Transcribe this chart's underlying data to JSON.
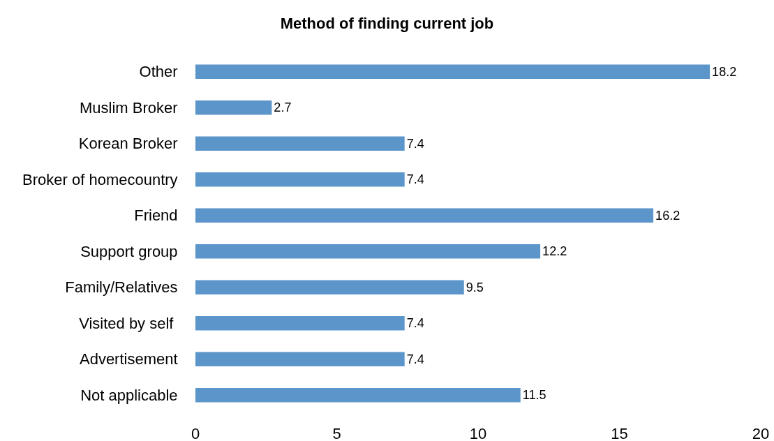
{
  "chart_data": {
    "type": "bar",
    "orientation": "horizontal",
    "title": "Method of finding current job",
    "categories": [
      "Other",
      "Muslim Broker",
      "Korean Broker",
      "Broker of homecountry",
      "Friend",
      "Support group",
      "Family/Relatives",
      "Visited by self ",
      "Advertisement",
      "Not applicable"
    ],
    "values": [
      18.2,
      2.7,
      7.4,
      7.4,
      16.2,
      12.2,
      9.5,
      7.4,
      7.4,
      11.5
    ],
    "color": "#5b95c9",
    "xlim": [
      0,
      20
    ],
    "xticks": [
      0,
      5,
      10,
      15,
      20
    ],
    "grid": false,
    "data_labels": true
  }
}
